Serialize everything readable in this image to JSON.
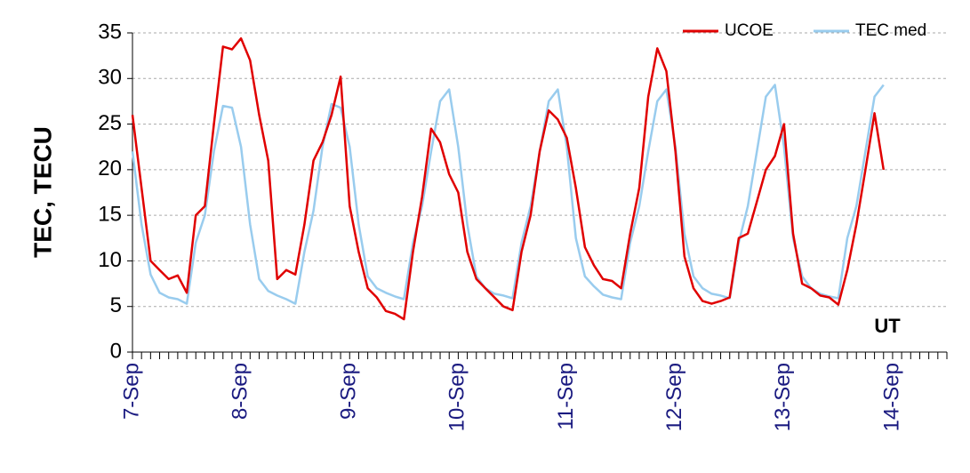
{
  "chart_data": {
    "type": "line",
    "y_label": "TEC, TECU",
    "annotation": "UT",
    "categories": [
      "7-Sep",
      null,
      null,
      null,
      null,
      null,
      null,
      null,
      null,
      null,
      null,
      null,
      "8-Sep",
      null,
      null,
      null,
      null,
      null,
      null,
      null,
      null,
      null,
      null,
      null,
      "9-Sep",
      null,
      null,
      null,
      null,
      null,
      null,
      null,
      null,
      null,
      null,
      null,
      "10-Sep",
      null,
      null,
      null,
      null,
      null,
      null,
      null,
      null,
      null,
      null,
      null,
      "11-Sep",
      null,
      null,
      null,
      null,
      null,
      null,
      null,
      null,
      null,
      null,
      null,
      "12-Sep",
      null,
      null,
      null,
      null,
      null,
      null,
      null,
      null,
      null,
      null,
      null,
      "13-Sep",
      null,
      null,
      null,
      null,
      null,
      null,
      null,
      null,
      null,
      null,
      null,
      "14-Sep",
      null,
      null,
      null,
      null,
      null,
      null
    ],
    "series": [
      {
        "name": "UCOE",
        "color": "#e00000",
        "values": [
          26,
          18,
          10,
          9,
          8,
          8.4,
          6.5,
          15,
          16,
          25,
          33.5,
          33.2,
          34.4,
          32,
          26,
          21,
          8,
          9,
          8.5,
          14,
          21,
          23,
          26,
          30.2,
          16,
          11,
          7,
          6,
          4.5,
          4.2,
          3.6,
          11,
          17,
          24.5,
          23,
          19.5,
          17.5,
          11,
          8,
          7,
          6,
          5,
          4.6,
          11,
          15,
          22,
          26.5,
          25.5,
          23.5,
          18,
          11.5,
          9.5,
          8,
          7.8,
          7,
          13,
          18,
          28,
          33.3,
          30.8,
          22,
          10.5,
          7,
          5.6,
          5.3,
          5.6,
          6,
          12.5,
          13,
          16.5,
          20,
          21.5,
          25,
          13,
          7.5,
          7,
          6.2,
          6,
          5.2,
          9,
          14,
          20,
          26.2,
          20,
          null,
          null,
          null,
          null,
          null,
          null,
          null
        ]
      },
      {
        "name": "TEC med",
        "color": "#99ccee",
        "values": [
          22,
          14,
          8.5,
          6.5,
          6,
          5.8,
          5.3,
          12,
          15,
          22,
          27,
          26.8,
          22.5,
          14,
          8,
          6.7,
          6.2,
          5.8,
          5.3,
          11,
          15.5,
          22.5,
          27.2,
          26.8,
          22.5,
          14,
          8.3,
          7,
          6.5,
          6.1,
          5.8,
          12,
          16,
          22,
          27.5,
          28.8,
          22.5,
          14,
          8.3,
          7,
          6.4,
          6.2,
          5.9,
          12,
          16,
          22,
          27.5,
          28.8,
          22.5,
          12.5,
          8.3,
          7.2,
          6.3,
          6,
          5.8,
          12,
          16,
          22,
          27.5,
          28.8,
          22.5,
          13,
          8.3,
          7,
          6.4,
          6.2,
          5.9,
          12,
          16,
          22,
          28,
          29.3,
          22.5,
          12.5,
          8.3,
          7,
          6.4,
          6.1,
          5.9,
          12.5,
          16,
          22,
          28,
          29.3,
          null,
          null,
          null,
          null,
          null,
          null,
          null
        ]
      }
    ],
    "ylim": [
      0,
      35
    ],
    "yticks": [
      0,
      5,
      10,
      15,
      20,
      25,
      30,
      35
    ],
    "grid": true,
    "legend": "upper right"
  }
}
